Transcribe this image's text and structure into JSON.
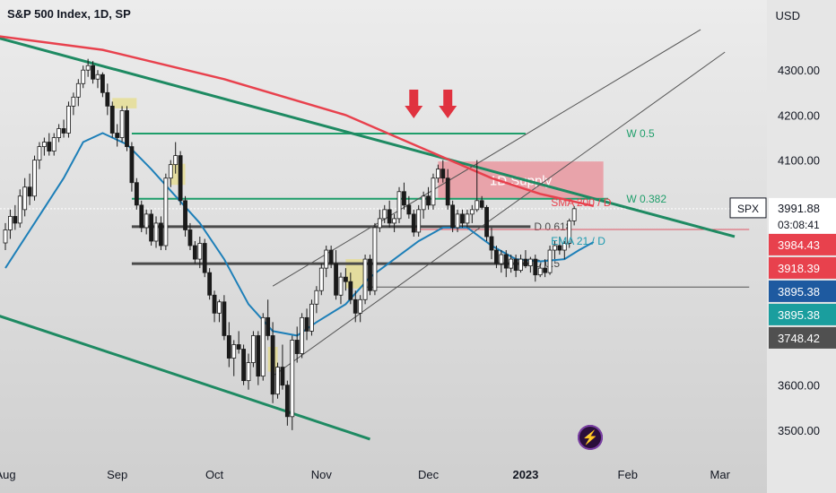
{
  "header": {
    "title": "S&P 500 Index, 1D, SP",
    "currency": "USD"
  },
  "icons": {
    "alert": "lightning-bolt-icon"
  },
  "chart_data": {
    "type": "candlestick",
    "title": "S&P 500 Index, 1D, SP",
    "symbol": "SPX",
    "timeframe": "1D",
    "y_unit": "USD",
    "ylim": [
      3440,
      4400
    ],
    "y_ticks": [
      3500,
      3600,
      3700,
      3800,
      3900,
      4000,
      4100,
      4200,
      4300
    ],
    "y_tick_labels": [
      "3500.00",
      "3600.00",
      "3700.00",
      "3800.00",
      "3900.00",
      "4000.00",
      "4100.00",
      "4200.00",
      "4300.00"
    ],
    "x_axis_labels": [
      {
        "label": "Aug",
        "bar": 0
      },
      {
        "label": "Sep",
        "bar": 23
      },
      {
        "label": "Oct",
        "bar": 43
      },
      {
        "label": "Nov",
        "bar": 65
      },
      {
        "label": "Dec",
        "bar": 87
      },
      {
        "label": "2023",
        "bar": 107,
        "bold": true
      },
      {
        "label": "Feb",
        "bar": 128
      },
      {
        "label": "Mar",
        "bar": 147
      }
    ],
    "grid": false,
    "candles": [
      [
        3916,
        3960,
        3900,
        3945
      ],
      [
        3945,
        3990,
        3925,
        3975
      ],
      [
        3975,
        4000,
        3945,
        3960
      ],
      [
        3960,
        4035,
        3950,
        4020
      ],
      [
        3990,
        4060,
        3975,
        4040
      ],
      [
        4040,
        4070,
        4000,
        4020
      ],
      [
        4020,
        4110,
        4010,
        4100
      ],
      [
        4100,
        4140,
        4080,
        4130
      ],
      [
        4130,
        4150,
        4110,
        4140
      ],
      [
        4140,
        4160,
        4110,
        4120
      ],
      [
        4120,
        4160,
        4110,
        4150
      ],
      [
        4150,
        4180,
        4140,
        4170
      ],
      [
        4170,
        4190,
        4150,
        4160
      ],
      [
        4160,
        4230,
        4150,
        4220
      ],
      [
        4220,
        4250,
        4200,
        4240
      ],
      [
        4240,
        4280,
        4220,
        4270
      ],
      [
        4270,
        4310,
        4260,
        4300
      ],
      [
        4300,
        4325,
        4285,
        4310
      ],
      [
        4310,
        4320,
        4270,
        4280
      ],
      [
        4280,
        4300,
        4260,
        4290
      ],
      [
        4290,
        4295,
        4240,
        4250
      ],
      [
        4250,
        4270,
        4200,
        4220
      ],
      [
        4220,
        4230,
        4150,
        4160
      ],
      [
        4160,
        4180,
        4130,
        4150
      ],
      [
        4150,
        4220,
        4140,
        4210
      ],
      [
        4210,
        4220,
        4120,
        4130
      ],
      [
        4130,
        4140,
        4030,
        4050
      ],
      [
        4050,
        4060,
        3990,
        4000
      ],
      [
        4000,
        4010,
        3940,
        3950
      ],
      [
        3950,
        3990,
        3935,
        3980
      ],
      [
        3980,
        3990,
        3910,
        3920
      ],
      [
        3920,
        3975,
        3905,
        3960
      ],
      [
        3960,
        3975,
        3900,
        3910
      ],
      [
        3910,
        4070,
        3900,
        4060
      ],
      [
        4060,
        4100,
        4040,
        4090
      ],
      [
        4090,
        4140,
        4070,
        4110
      ],
      [
        4110,
        4120,
        4000,
        4010
      ],
      [
        4010,
        4020,
        3930,
        3945
      ],
      [
        3945,
        3960,
        3900,
        3910
      ],
      [
        3910,
        3920,
        3870,
        3880
      ],
      [
        3880,
        3930,
        3860,
        3915
      ],
      [
        3915,
        3925,
        3840,
        3850
      ],
      [
        3850,
        3860,
        3790,
        3800
      ],
      [
        3800,
        3810,
        3740,
        3760
      ],
      [
        3760,
        3790,
        3740,
        3785
      ],
      [
        3785,
        3800,
        3700,
        3710
      ],
      [
        3710,
        3740,
        3640,
        3660
      ],
      [
        3660,
        3700,
        3620,
        3690
      ],
      [
        3690,
        3720,
        3670,
        3680
      ],
      [
        3680,
        3690,
        3600,
        3610
      ],
      [
        3610,
        3670,
        3590,
        3650
      ],
      [
        3650,
        3720,
        3640,
        3710
      ],
      [
        3710,
        3720,
        3600,
        3620
      ],
      [
        3620,
        3760,
        3610,
        3750
      ],
      [
        3750,
        3790,
        3700,
        3710
      ],
      [
        3710,
        3740,
        3560,
        3580
      ],
      [
        3580,
        3650,
        3570,
        3640
      ],
      [
        3640,
        3690,
        3590,
        3600
      ],
      [
        3600,
        3610,
        3510,
        3530
      ],
      [
        3530,
        3710,
        3500,
        3700
      ],
      [
        3700,
        3730,
        3650,
        3670
      ],
      [
        3670,
        3760,
        3660,
        3750
      ],
      [
        3750,
        3770,
        3700,
        3720
      ],
      [
        3720,
        3790,
        3710,
        3780
      ],
      [
        3780,
        3820,
        3760,
        3810
      ],
      [
        3810,
        3870,
        3800,
        3860
      ],
      [
        3860,
        3910,
        3840,
        3900
      ],
      [
        3900,
        3910,
        3860,
        3870
      ],
      [
        3870,
        3900,
        3790,
        3800
      ],
      [
        3800,
        3850,
        3780,
        3840
      ],
      [
        3840,
        3860,
        3810,
        3830
      ],
      [
        3830,
        3850,
        3780,
        3790
      ],
      [
        3790,
        3810,
        3740,
        3760
      ],
      [
        3760,
        3800,
        3740,
        3790
      ],
      [
        3790,
        3890,
        3780,
        3880
      ],
      [
        3880,
        3890,
        3800,
        3810
      ],
      [
        3810,
        3960,
        3800,
        3950
      ],
      [
        3950,
        3990,
        3940,
        3970
      ],
      [
        3970,
        4000,
        3960,
        3990
      ],
      [
        3990,
        4010,
        3950,
        3960
      ],
      [
        3960,
        3980,
        3940,
        3970
      ],
      [
        3970,
        4040,
        3960,
        4030
      ],
      [
        4030,
        4050,
        3990,
        4000
      ],
      [
        4000,
        4020,
        3970,
        3980
      ],
      [
        3980,
        3990,
        3930,
        3940
      ],
      [
        3940,
        4000,
        3930,
        3990
      ],
      [
        3990,
        4030,
        3970,
        4020
      ],
      [
        4020,
        4040,
        3990,
        4000
      ],
      [
        4000,
        4070,
        3990,
        4060
      ],
      [
        4060,
        4090,
        4050,
        4080
      ],
      [
        4080,
        4100,
        4050,
        4060
      ],
      [
        4060,
        4080,
        3990,
        4000
      ],
      [
        4000,
        4010,
        3940,
        3950
      ],
      [
        3950,
        3990,
        3940,
        3980
      ],
      [
        3980,
        3990,
        3950,
        3960
      ],
      [
        3960,
        3990,
        3950,
        3980
      ],
      [
        3980,
        4000,
        3960,
        3990
      ],
      [
        3990,
        4100,
        3985,
        4010
      ],
      [
        4010,
        4020,
        3990,
        3995
      ],
      [
        3995,
        4000,
        3920,
        3930
      ],
      [
        3930,
        3950,
        3880,
        3900
      ],
      [
        3900,
        3910,
        3860,
        3870
      ],
      [
        3870,
        3900,
        3850,
        3890
      ],
      [
        3890,
        3900,
        3840,
        3860
      ],
      [
        3860,
        3890,
        3850,
        3880
      ],
      [
        3880,
        3890,
        3840,
        3855
      ],
      [
        3855,
        3890,
        3850,
        3880
      ],
      [
        3880,
        3900,
        3860,
        3865
      ],
      [
        3865,
        3885,
        3850,
        3880
      ],
      [
        3880,
        3890,
        3830,
        3845
      ],
      [
        3845,
        3870,
        3840,
        3860
      ],
      [
        3860,
        3880,
        3840,
        3850
      ],
      [
        3850,
        3910,
        3845,
        3900
      ],
      [
        3900,
        3920,
        3880,
        3910
      ],
      [
        3910,
        3930,
        3890,
        3900
      ],
      [
        3900,
        3920,
        3880,
        3915
      ],
      [
        3915,
        3970,
        3905,
        3965
      ],
      [
        3965,
        3998,
        3955,
        3992
      ]
    ],
    "series": [
      {
        "name": "SMA 200 / D",
        "color": "#e8414d",
        "points": [
          [
            -2,
            4376
          ],
          [
            20,
            4345
          ],
          [
            45,
            4280
          ],
          [
            70,
            4200
          ],
          [
            85,
            4130
          ],
          [
            100,
            4060
          ],
          [
            110,
            4025
          ],
          [
            121,
            3998
          ]
        ]
      },
      {
        "name": "EMA 21 / D",
        "color": "#1d7fb8",
        "points": [
          [
            0,
            3860
          ],
          [
            6,
            3960
          ],
          [
            12,
            4060
          ],
          [
            16,
            4140
          ],
          [
            20,
            4160
          ],
          [
            25,
            4135
          ],
          [
            30,
            4080
          ],
          [
            35,
            4020
          ],
          [
            40,
            3960
          ],
          [
            45,
            3880
          ],
          [
            50,
            3780
          ],
          [
            55,
            3720
          ],
          [
            60,
            3710
          ],
          [
            64,
            3740
          ],
          [
            70,
            3780
          ],
          [
            75,
            3840
          ],
          [
            80,
            3880
          ],
          [
            85,
            3920
          ],
          [
            90,
            3950
          ],
          [
            95,
            3950
          ],
          [
            100,
            3910
          ],
          [
            105,
            3880
          ],
          [
            110,
            3875
          ],
          [
            115,
            3880
          ],
          [
            118,
            3900
          ],
          [
            121,
            3918
          ]
        ]
      }
    ],
    "trendlines": [
      {
        "label": "",
        "color": "#1e8a62",
        "width": 3,
        "points": [
          [
            -3,
            4376
          ],
          [
            150,
            3930
          ]
        ]
      },
      {
        "label": "",
        "color": "#1e8a62",
        "width": 3,
        "points": [
          [
            -3,
            3760
          ],
          [
            75,
            3480
          ]
        ]
      },
      {
        "label": "",
        "color": "#555555",
        "width": 1,
        "points": [
          [
            55,
            3820
          ],
          [
            143,
            4390
          ]
        ]
      },
      {
        "label": "",
        "color": "#555555",
        "width": 1,
        "points": [
          [
            55,
            3620
          ],
          [
            148,
            4340
          ]
        ]
      }
    ],
    "levels": [
      {
        "label": "W 0.5",
        "value": 4159,
        "color": "#1e9e6a",
        "bar_from": 26,
        "bar_to": 107,
        "label_bar": 127
      },
      {
        "label": "W 0.382",
        "value": 4014,
        "color": "#1e9e6a",
        "bar_from": 26,
        "bar_to": 124,
        "label_bar": 127
      },
      {
        "label": "D 0.618",
        "value": 3952,
        "color": "#4a4a4a",
        "bar_from": 26,
        "bar_to": 108,
        "label_bar": 108
      },
      {
        "label": "D 0.5",
        "value": 3870,
        "color": "#4a4a4a",
        "bar_from": 26,
        "bar_to": 108,
        "label_bar": 108
      },
      {
        "label": "",
        "value": 3818,
        "color": "#555555",
        "bar_from": 74,
        "bar_to": 153,
        "label_bar": null
      },
      {
        "label": "",
        "value": 3946,
        "color": "#e05565",
        "bar_from": 84,
        "bar_to": 153,
        "label_bar": null
      }
    ],
    "zones": [
      {
        "label": "1D Supply",
        "from_bar": 89,
        "to_bar": 123,
        "low": 4016,
        "high": 4097,
        "color": "#ec7a86"
      },
      {
        "label": "",
        "from_bar": 22,
        "to_bar": 27,
        "low": 4215,
        "high": 4238,
        "color": "#e6dc8a"
      },
      {
        "label": "",
        "from_bar": 34,
        "to_bar": 37,
        "low": 4045,
        "high": 4092,
        "color": "#e6dc8a"
      },
      {
        "label": "",
        "from_bar": 70,
        "to_bar": 74,
        "low": 3815,
        "high": 3880,
        "color": "#e6dc8a"
      },
      {
        "label": "",
        "from_bar": 54,
        "to_bar": 56,
        "low": 3630,
        "high": 3685,
        "color": "#e6dc8a"
      }
    ],
    "indicator_labels": [
      {
        "label": "SMA 200 / D",
        "bar": 110,
        "value": 4006,
        "color": "#e8414d"
      },
      {
        "label": "EMA 21 / D",
        "bar": 110,
        "value": 3920,
        "color": "#1d9ab0"
      }
    ],
    "arrows": [
      {
        "bar": 84,
        "value": 4165,
        "color": "#e0323f"
      },
      {
        "bar": 91,
        "value": 4165,
        "color": "#e0323f"
      }
    ],
    "price_tags": [
      {
        "label": "SPX",
        "value": 3991.88,
        "text": "3991.88",
        "sub": "03:08:41",
        "bg": "#ffffff",
        "fg": "#131722",
        "boxed": true
      },
      {
        "label": "",
        "value": 3984.43,
        "text": "3984.43",
        "bg": "#e8414d",
        "fg": "#ffffff"
      },
      {
        "label": "",
        "value": 3918.39,
        "text": "3918.39",
        "bg": "#e8414d",
        "fg": "#ffffff"
      },
      {
        "label": "",
        "value": 3895.38,
        "text": "3895.38",
        "bg": "#1e5aa0",
        "fg": "#ffffff"
      },
      {
        "label": "",
        "value": 3895.38,
        "text": "3895.38",
        "bg": "#1a9e9e",
        "fg": "#ffffff"
      },
      {
        "label": "",
        "value": 3748.42,
        "text": "3748.42",
        "bg": "#505050",
        "fg": "#ffffff"
      }
    ],
    "current_price_line": 3991.88
  }
}
